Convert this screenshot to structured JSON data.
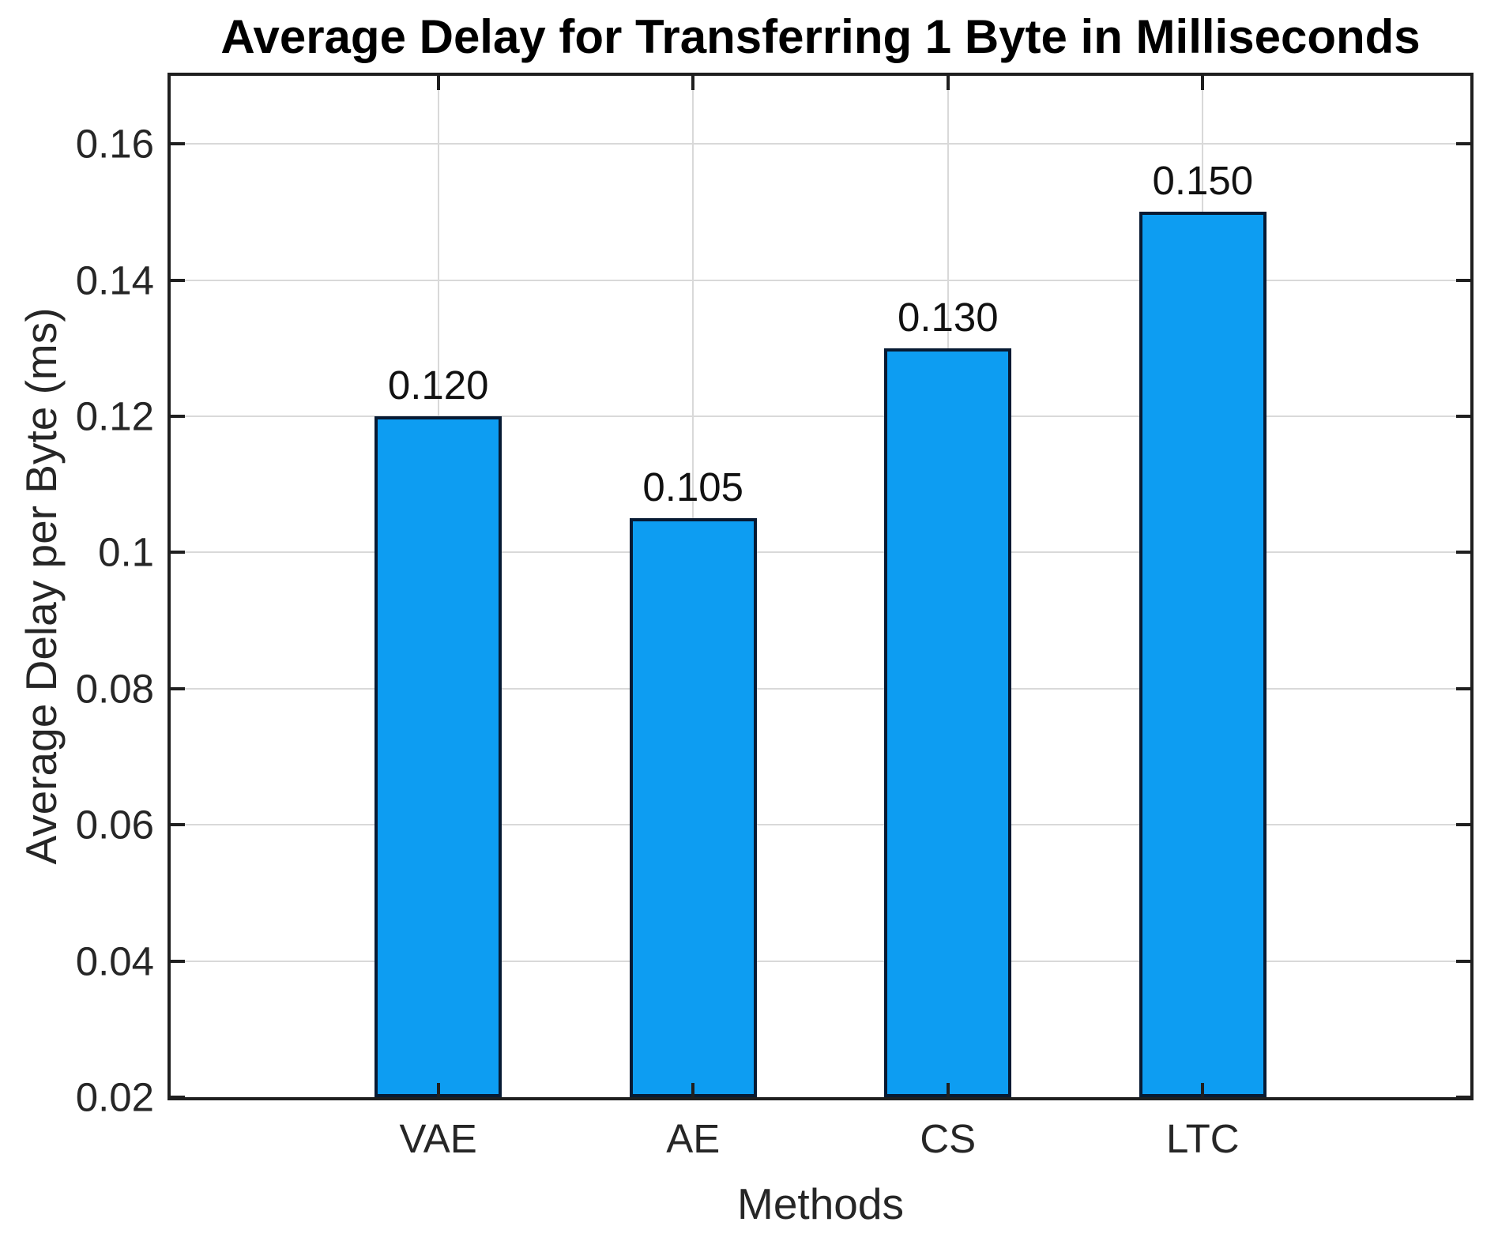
{
  "chart_data": {
    "type": "bar",
    "title": "Average Delay for Transferring 1 Byte in Milliseconds",
    "xlabel": "Methods",
    "ylabel": "Average Delay per Byte (ms)",
    "categories": [
      "VAE",
      "AE",
      "CS",
      "LTC"
    ],
    "values": [
      0.12,
      0.105,
      0.13,
      0.15
    ],
    "value_labels": [
      "0.120",
      "0.105",
      "0.130",
      "0.150"
    ],
    "ylim": [
      0.02,
      0.17
    ],
    "yticks": [
      0.02,
      0.04,
      0.06,
      0.08,
      0.1,
      0.12,
      0.14,
      0.16
    ],
    "ytick_labels": [
      "0.02",
      "0.04",
      "0.06",
      "0.08",
      "0.1",
      "0.12",
      "0.14",
      "0.16"
    ],
    "xlim": [
      -0.05,
      5.05
    ],
    "bar_centers": [
      1,
      2,
      3,
      4
    ],
    "bar_width_units": 0.5,
    "grid": true,
    "legend_position": "none",
    "colors": {
      "bar_fill": "#0d9df2",
      "bar_edge": "#071a33",
      "axis": "#1f1f1f",
      "grid": "#d9d9d9",
      "tick_text": "#262626",
      "title_text": "#000000",
      "value_text": "#111111"
    }
  }
}
